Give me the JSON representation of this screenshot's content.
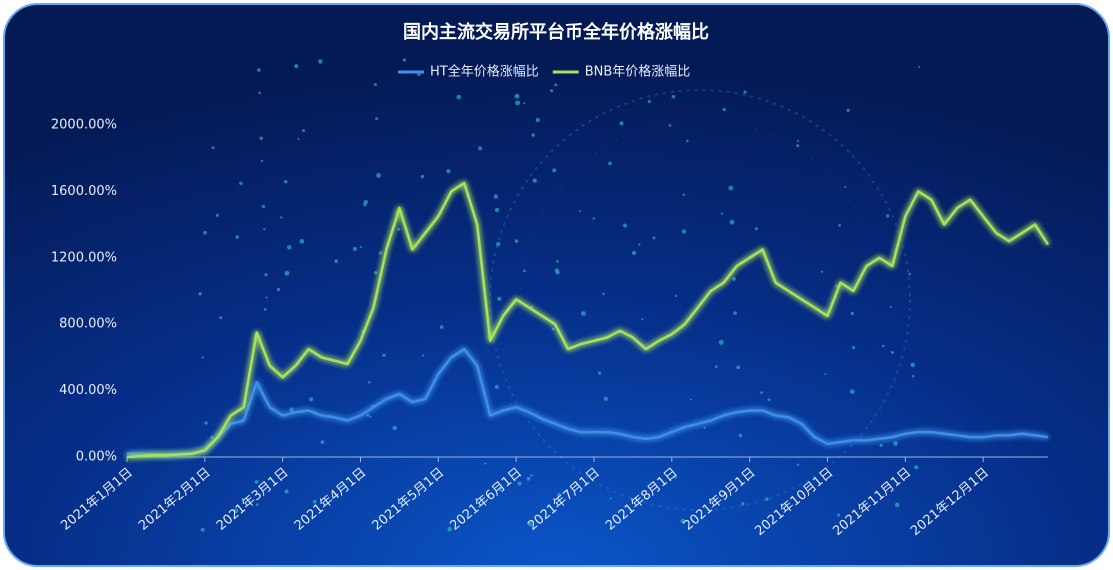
{
  "chart_data": {
    "type": "line",
    "title": "国内主流交易所平台币全年价格涨幅比",
    "categories": [
      "2021年1月1日",
      null,
      null,
      null,
      null,
      null,
      "2021年2月1日",
      null,
      null,
      null,
      null,
      null,
      "2021年3月1日",
      null,
      null,
      null,
      null,
      null,
      "2021年4月1日",
      null,
      null,
      null,
      null,
      null,
      "2021年5月1日",
      null,
      null,
      null,
      null,
      null,
      "2021年6月1日",
      null,
      null,
      null,
      null,
      null,
      "2021年7月1日",
      null,
      null,
      null,
      null,
      null,
      "2021年8月1日",
      null,
      null,
      null,
      null,
      null,
      "2021年9月1日",
      null,
      null,
      null,
      null,
      null,
      "2021年10月1日",
      null,
      null,
      null,
      null,
      null,
      "2021年11月1日",
      null,
      null,
      null,
      null,
      null,
      "2021年12月1日",
      null,
      null,
      null,
      null,
      null
    ],
    "series": [
      {
        "name": "HT全年价格涨幅比",
        "color": "#3d8fe8",
        "values": [
          20,
          20,
          15,
          15,
          15,
          20,
          40,
          120,
          200,
          220,
          450,
          300,
          250,
          270,
          280,
          250,
          240,
          220,
          250,
          300,
          350,
          380,
          330,
          350,
          500,
          600,
          650,
          550,
          250,
          280,
          300,
          270,
          230,
          200,
          170,
          150,
          150,
          150,
          140,
          120,
          110,
          120,
          150,
          180,
          200,
          220,
          250,
          270,
          280,
          280,
          250,
          240,
          200,
          120,
          80,
          90,
          100,
          100,
          110,
          120,
          140,
          150,
          150,
          140,
          130,
          120,
          120,
          130,
          130,
          140,
          130,
          120
        ]
      },
      {
        "name": "BNB年价格涨幅比",
        "color": "#a8e25c",
        "values": [
          0,
          5,
          10,
          10,
          15,
          20,
          40,
          120,
          250,
          300,
          750,
          550,
          480,
          550,
          650,
          600,
          580,
          560,
          700,
          900,
          1250,
          1500,
          1250,
          1350,
          1450,
          1600,
          1650,
          1400,
          700,
          850,
          950,
          900,
          850,
          800,
          650,
          680,
          700,
          720,
          760,
          720,
          650,
          700,
          740,
          800,
          900,
          1000,
          1050,
          1150,
          1200,
          1250,
          1050,
          1000,
          950,
          900,
          850,
          1050,
          1000,
          1150,
          1200,
          1150,
          1450,
          1600,
          1550,
          1400,
          1500,
          1550,
          1450,
          1350,
          1300,
          1350,
          1400,
          1280
        ]
      }
    ],
    "ylim": [
      0,
      2000
    ],
    "yticks": [
      {
        "value": 0,
        "label": "0.00%"
      },
      {
        "value": 400,
        "label": "400.00%"
      },
      {
        "value": 800,
        "label": "800.00%"
      },
      {
        "value": 1200,
        "label": "1200.00%"
      },
      {
        "value": 1600,
        "label": "1600.00%"
      },
      {
        "value": 2000,
        "label": "2000.00%"
      }
    ],
    "grid": false
  }
}
